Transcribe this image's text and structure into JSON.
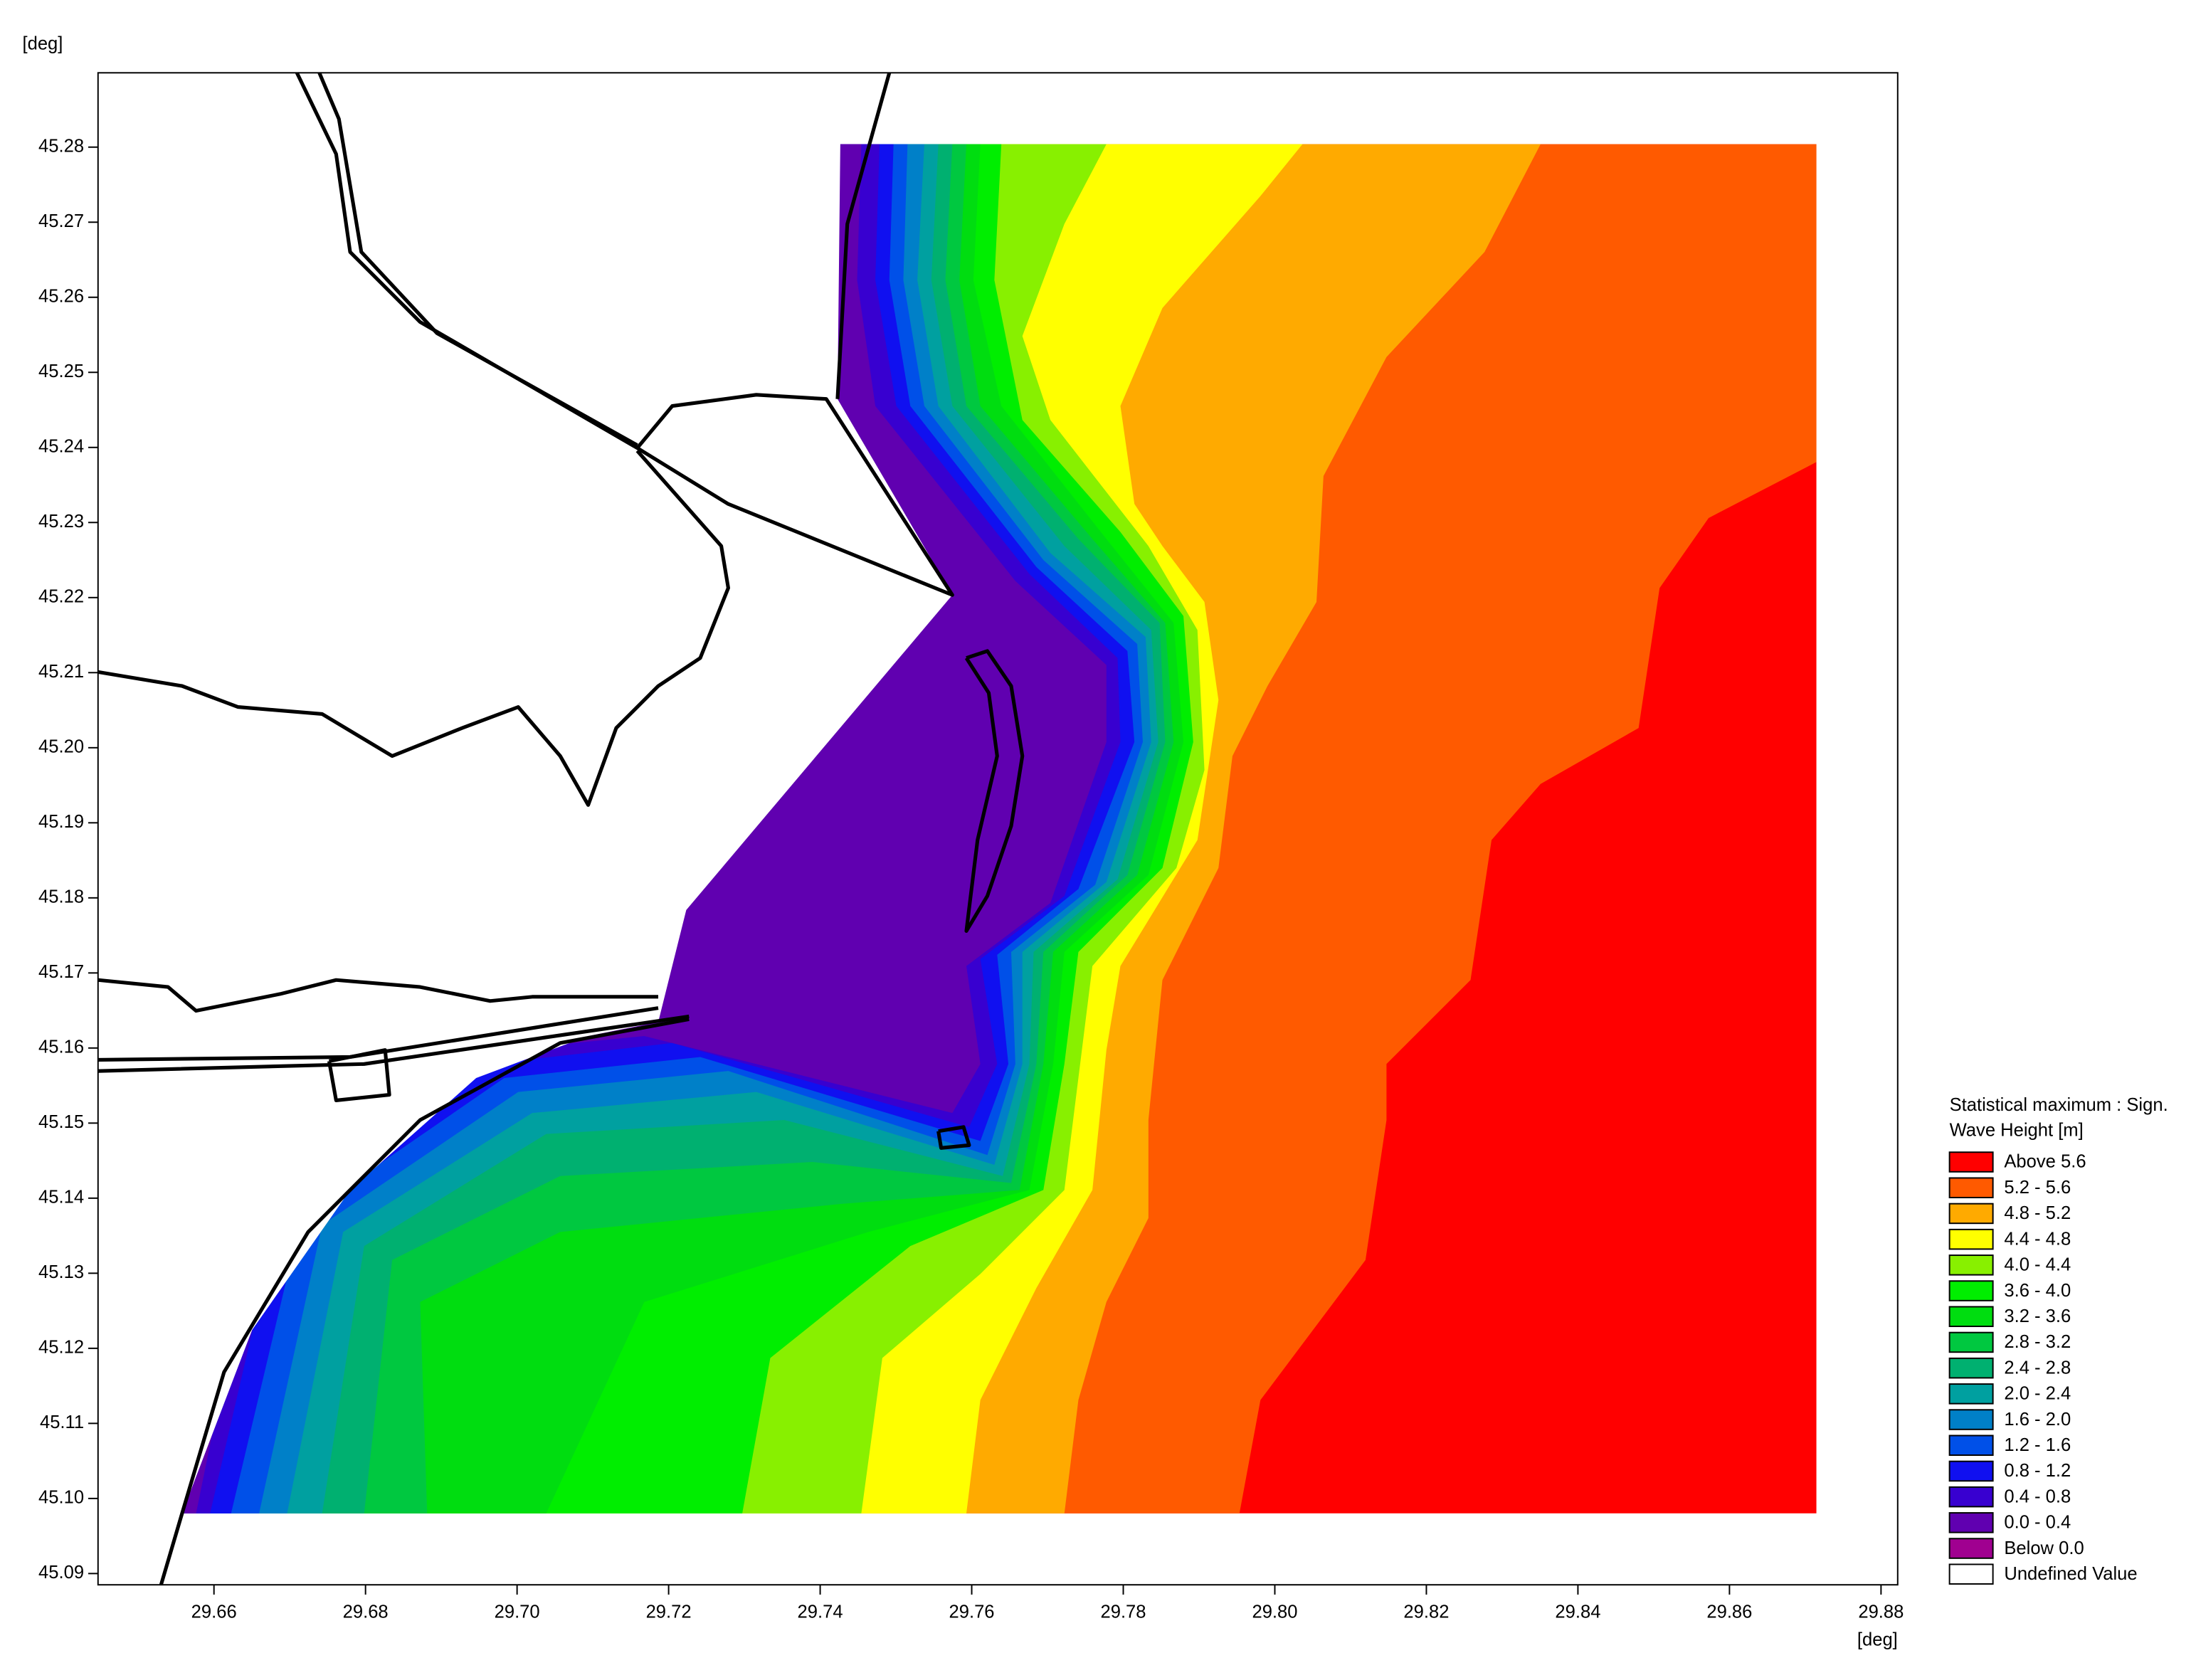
{
  "chart_data": {
    "type": "contour",
    "xlabel": "[deg]",
    "ylabel": "[deg]",
    "xlim": [
      29.6447,
      29.8822
    ],
    "ylim": [
      45.0885,
      45.2899
    ],
    "xticks": [
      29.66,
      29.68,
      {
        "value": 29.7,
        "label": "29.70"
      },
      29.72,
      29.74,
      29.76,
      29.78,
      {
        "value": 29.8,
        "label": "29.80"
      },
      29.82,
      29.84,
      29.86,
      29.88
    ],
    "yticks": [
      45.09,
      {
        "value": 45.1,
        "label": "45.10"
      },
      45.11,
      45.12,
      45.13,
      45.14,
      45.15,
      45.16,
      45.17,
      45.18,
      45.19,
      {
        "value": 45.2,
        "label": "45.20"
      },
      45.21,
      45.22,
      45.23,
      45.24,
      45.25,
      45.26,
      45.27,
      45.28
    ],
    "legend": {
      "title": [
        "Statistical maximum : Sign.",
        "Wave Height [m]"
      ],
      "entries": [
        {
          "label": "Above 5.6",
          "color": "#ff0000"
        },
        {
          "label": "5.2 - 5.6",
          "color": "#ff5a00"
        },
        {
          "label": "4.8 - 5.2",
          "color": "#ffaa00"
        },
        {
          "label": "4.4 - 4.8",
          "color": "#ffff00"
        },
        {
          "label": "4.0 - 4.4",
          "color": "#88f000"
        },
        {
          "label": "3.6 - 4.0",
          "color": "#00ee00"
        },
        {
          "label": "3.2 - 3.6",
          "color": "#00dd10"
        },
        {
          "label": "2.8 - 3.2",
          "color": "#00c840"
        },
        {
          "label": "2.4 - 2.8",
          "color": "#00b070"
        },
        {
          "label": "2.0 - 2.4",
          "color": "#00a0a0"
        },
        {
          "label": "1.6 - 2.0",
          "color": "#0080c8"
        },
        {
          "label": "1.2 - 1.6",
          "color": "#0050e8"
        },
        {
          "label": "0.8 - 1.2",
          "color": "#1010f0"
        },
        {
          "label": "0.4 - 0.8",
          "color": "#3800d0"
        },
        {
          "label": "0.0 - 0.4",
          "color": "#6000b0"
        },
        {
          "label": "Below 0.0",
          "color": "#a00090"
        },
        {
          "label": "Undefined Value",
          "color": "#ffffff"
        }
      ]
    }
  }
}
